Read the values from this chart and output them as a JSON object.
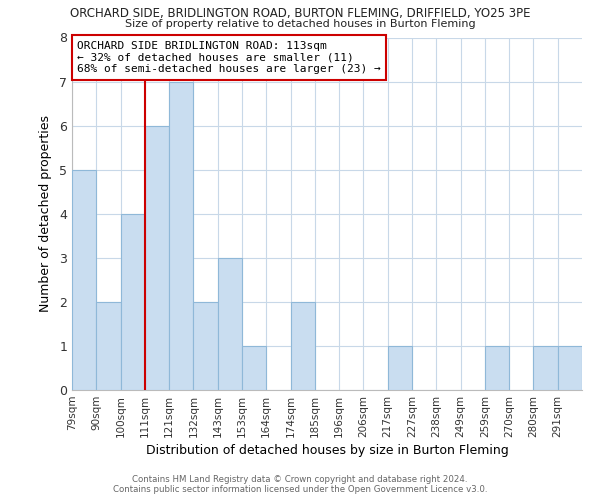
{
  "title": "ORCHARD SIDE, BRIDLINGTON ROAD, BURTON FLEMING, DRIFFIELD, YO25 3PE",
  "subtitle": "Size of property relative to detached houses in Burton Fleming",
  "xlabel": "Distribution of detached houses by size in Burton Fleming",
  "ylabel": "Number of detached properties",
  "bin_labels": [
    "79sqm",
    "90sqm",
    "100sqm",
    "111sqm",
    "121sqm",
    "132sqm",
    "143sqm",
    "153sqm",
    "164sqm",
    "174sqm",
    "185sqm",
    "196sqm",
    "206sqm",
    "217sqm",
    "227sqm",
    "238sqm",
    "249sqm",
    "259sqm",
    "270sqm",
    "280sqm",
    "291sqm"
  ],
  "bar_heights": [
    5,
    2,
    4,
    6,
    7,
    2,
    3,
    1,
    0,
    2,
    0,
    0,
    0,
    1,
    0,
    0,
    0,
    1,
    0,
    1,
    1
  ],
  "bar_color": "#c9ddf0",
  "bar_edge_color": "#8fb8d8",
  "vline_color": "#cc0000",
  "ylim": [
    0,
    8
  ],
  "annotation_text": "ORCHARD SIDE BRIDLINGTON ROAD: 113sqm\n← 32% of detached houses are smaller (11)\n68% of semi-detached houses are larger (23) →",
  "footnote1": "Contains HM Land Registry data © Crown copyright and database right 2024.",
  "footnote2": "Contains public sector information licensed under the Open Government Licence v3.0.",
  "background_color": "#ffffff",
  "grid_color": "#c8d8e8"
}
